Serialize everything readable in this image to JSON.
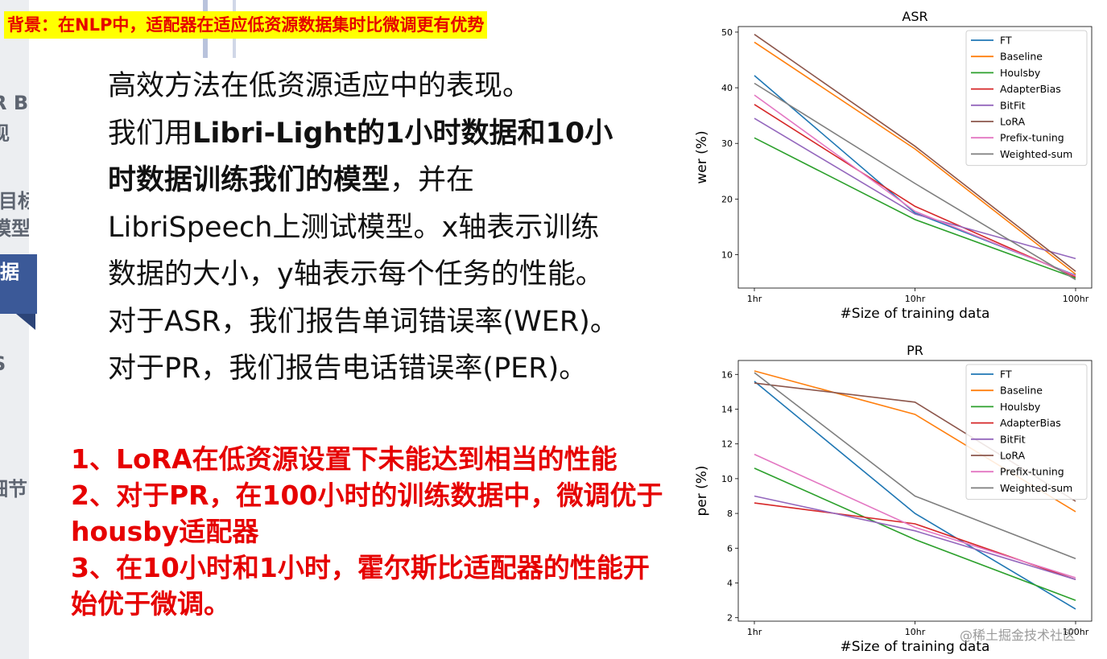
{
  "banner": "背景：在NLP中，适配器在适应低资源数据集时比微调更有优势",
  "sidebar": {
    "items": [
      "R B",
      "现",
      "目标",
      "模型",
      "据",
      "S",
      "细节"
    ],
    "accent_color": "#3b5998"
  },
  "description": {
    "line1": "高效方法在低资源适应中的表现。",
    "line2_normal": "我们用",
    "line2_bold": "Libri-Light的1小时数据和10小",
    "line3_bold": "时数据训练我们的模型",
    "line3_normal": "，并在",
    "line4": "LibriSpeech上测试模型。x轴表示训练",
    "line5": "数据的大小，y轴表示每个任务的性能。",
    "line6": "对于ASR，我们报告单词错误率(WER)。",
    "line7": "对于PR，我们报告电话错误率(PER)。"
  },
  "findings": {
    "item1": "1、LoRA在低资源设置下未能达到相当的性能",
    "item2": "2、对于PR，在100小时的训练数据中，微调优于housby适配器",
    "item3": "3、在10小时和1小时，霍尔斯比适配器的性能开始优于微调。",
    "color": "#e60000"
  },
  "watermark": "@稀土掘金技术社区",
  "chart_data": [
    {
      "type": "line",
      "title": "ASR",
      "xlabel": "#Size of training data",
      "ylabel": "wer (%)",
      "categories": [
        "1hr",
        "10hr",
        "100hr"
      ],
      "yticks": [
        10,
        20,
        30,
        40,
        50
      ],
      "ylim": [
        4,
        51
      ],
      "legend_position": "top-right",
      "series": [
        {
          "name": "FT",
          "color": "#1f77b4",
          "values": [
            42.2,
            17.5,
            6.3
          ]
        },
        {
          "name": "Baseline",
          "color": "#ff7f0e",
          "values": [
            48.2,
            29.0,
            6.5
          ]
        },
        {
          "name": "Houlsby",
          "color": "#2ca02c",
          "values": [
            31.0,
            16.3,
            5.8
          ]
        },
        {
          "name": "AdapterBias",
          "color": "#d62728",
          "values": [
            37.0,
            18.7,
            6.0
          ]
        },
        {
          "name": "BitFit",
          "color": "#9467bd",
          "values": [
            34.5,
            17.3,
            9.3
          ]
        },
        {
          "name": "LoRA",
          "color": "#8c564b",
          "values": [
            49.6,
            29.5,
            7.0
          ]
        },
        {
          "name": "Prefix-tuning",
          "color": "#e377c2",
          "values": [
            38.7,
            17.8,
            6.2
          ]
        },
        {
          "name": "Weighted-sum",
          "color": "#7f7f7f",
          "values": [
            40.8,
            22.8,
            5.5
          ]
        }
      ]
    },
    {
      "type": "line",
      "title": "PR",
      "xlabel": "#Size of training data",
      "ylabel": "per (%)",
      "categories": [
        "1hr",
        "10hr",
        "100hr"
      ],
      "yticks": [
        2,
        4,
        6,
        8,
        10,
        12,
        14,
        16
      ],
      "ylim": [
        1.8,
        16.8
      ],
      "legend_position": "top-right",
      "series": [
        {
          "name": "FT",
          "color": "#1f77b4",
          "values": [
            15.6,
            8.0,
            2.5
          ]
        },
        {
          "name": "Baseline",
          "color": "#ff7f0e",
          "values": [
            16.2,
            13.7,
            8.1
          ]
        },
        {
          "name": "Houlsby",
          "color": "#2ca02c",
          "values": [
            10.6,
            6.5,
            3.0
          ]
        },
        {
          "name": "AdapterBias",
          "color": "#d62728",
          "values": [
            8.6,
            7.4,
            4.2
          ]
        },
        {
          "name": "BitFit",
          "color": "#9467bd",
          "values": [
            9.0,
            7.0,
            4.2
          ]
        },
        {
          "name": "LoRA",
          "color": "#8c564b",
          "values": [
            15.5,
            14.4,
            8.7
          ]
        },
        {
          "name": "Prefix-tuning",
          "color": "#e377c2",
          "values": [
            11.4,
            7.2,
            4.3
          ]
        },
        {
          "name": "Weighted-sum",
          "color": "#7f7f7f",
          "values": [
            16.1,
            9.0,
            5.4
          ]
        }
      ]
    }
  ]
}
